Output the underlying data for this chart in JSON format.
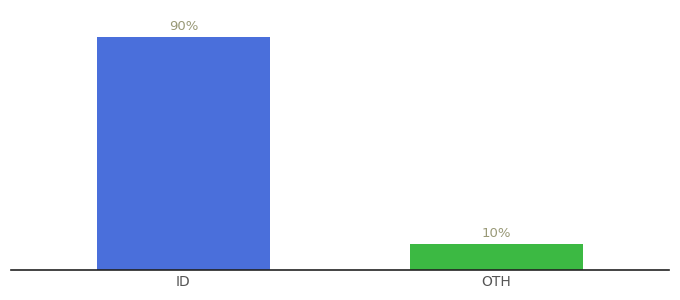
{
  "categories": [
    "ID",
    "OTH"
  ],
  "values": [
    90,
    10
  ],
  "bar_colors": [
    "#4a6fdb",
    "#3cb943"
  ],
  "bar_labels": [
    "90%",
    "10%"
  ],
  "background_color": "#ffffff",
  "ylim": [
    0,
    100
  ],
  "bar_width": 0.55,
  "label_fontsize": 9.5,
  "tick_fontsize": 10,
  "label_color": "#999977",
  "tick_color": "#555555",
  "spine_color": "#222222"
}
